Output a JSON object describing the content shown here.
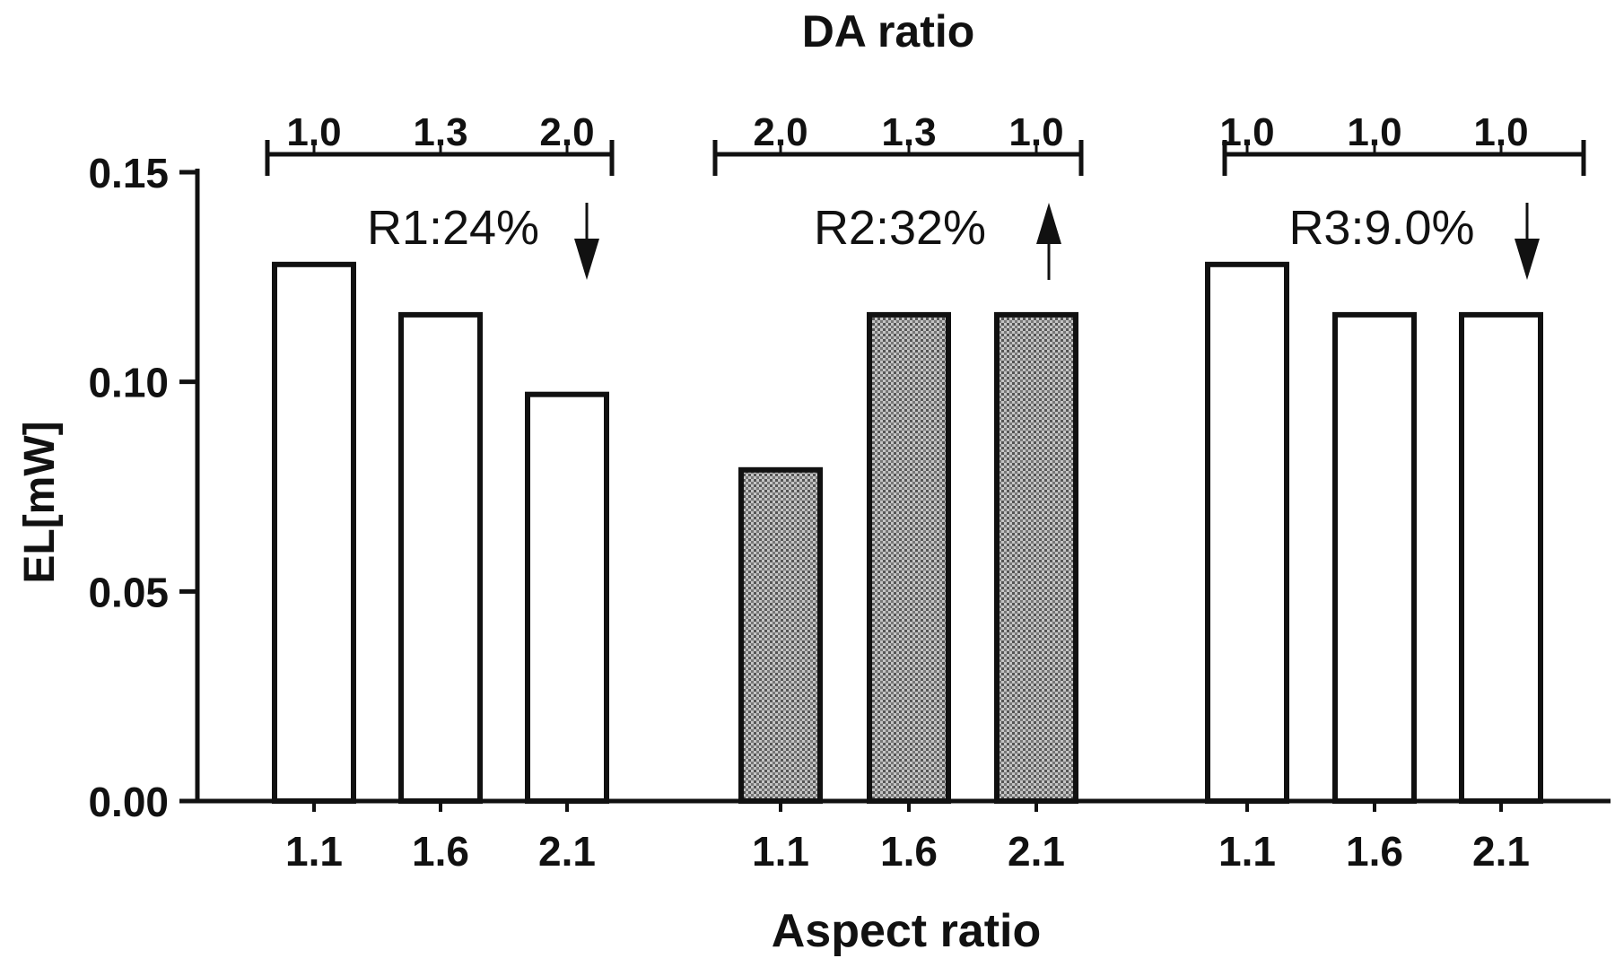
{
  "chart_data": {
    "type": "bar",
    "title": "DA ratio",
    "xlabel": "Aspect ratio",
    "ylabel": "EL[mW]",
    "ylim": [
      0,
      0.15
    ],
    "y_ticks": [
      "0.00",
      "0.05",
      "0.10",
      "0.15"
    ],
    "grid": false,
    "groups": [
      {
        "categories": [
          "1.1",
          "1.6",
          "2.1"
        ],
        "values": [
          0.128,
          0.116,
          0.097
        ],
        "da_ratio_labels": [
          "1.0",
          "1.3",
          "2.0"
        ],
        "annotation": "R1:24%",
        "arrow": "down",
        "fill": "white"
      },
      {
        "categories": [
          "1.1",
          "1.6",
          "2.1"
        ],
        "values": [
          0.079,
          0.116,
          0.116
        ],
        "da_ratio_labels": [
          "2.0",
          "1.3",
          "1.0"
        ],
        "annotation": "R2:32%",
        "arrow": "up",
        "fill": "gray"
      },
      {
        "categories": [
          "1.1",
          "1.6",
          "2.1"
        ],
        "values": [
          0.128,
          0.116,
          0.116
        ],
        "da_ratio_labels": [
          "1.0",
          "1.0",
          "1.0"
        ],
        "annotation": "R3:9.0%",
        "arrow": "down",
        "fill": "white"
      }
    ]
  }
}
